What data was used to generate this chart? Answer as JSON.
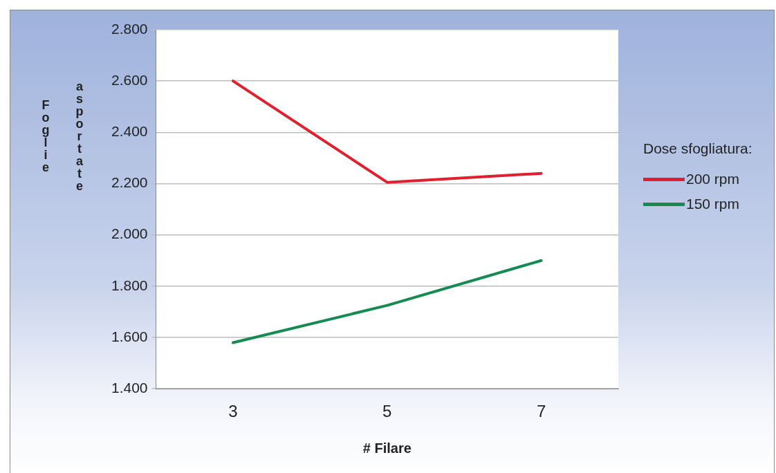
{
  "chart_data": {
    "type": "line",
    "xlabel": "# Filare",
    "ylabel": "Foglie asportate",
    "legend_title": "Dose sfogliatura:",
    "categories": [
      "3",
      "5",
      "7"
    ],
    "series": [
      {
        "name": "200 rpm",
        "color": "#e0202e",
        "values": [
          2600,
          2205,
          2240
        ]
      },
      {
        "name": "150 rpm",
        "color": "#158a52",
        "values": [
          1580,
          1725,
          1900
        ]
      }
    ],
    "ylim": [
      1400,
      2800
    ],
    "yticks": [
      {
        "value": 1400,
        "label": "1.400"
      },
      {
        "value": 1600,
        "label": "1.600"
      },
      {
        "value": 1800,
        "label": "1.800"
      },
      {
        "value": 2000,
        "label": "2.000"
      },
      {
        "value": 2200,
        "label": "2.200"
      },
      {
        "value": 2400,
        "label": "2.400"
      },
      {
        "value": 2600,
        "label": "2.600"
      },
      {
        "value": 2800,
        "label": "2.800"
      }
    ],
    "grid": "y",
    "legend": "right",
    "marker": "none",
    "line_style": "solid"
  }
}
